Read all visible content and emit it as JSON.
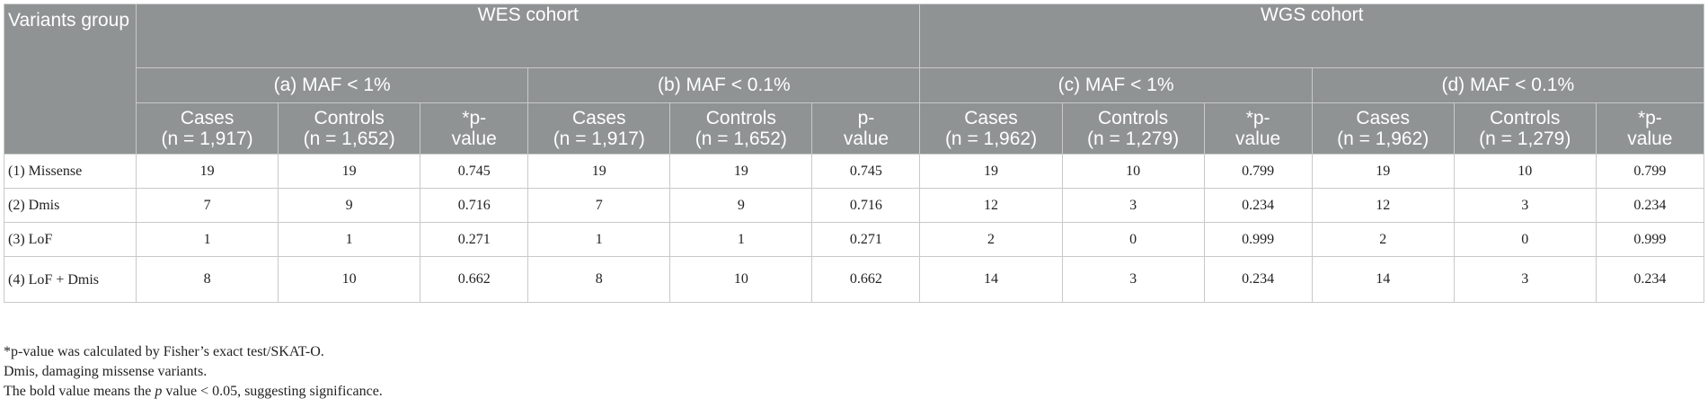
{
  "header": {
    "variants_group": "Variants group",
    "cohorts": [
      "WES cohort",
      "WGS cohort"
    ],
    "subgroups": [
      "(a) MAF < 1%",
      "(b) MAF < 0.1%",
      "(c) MAF < 1%",
      "(d) MAF < 0.1%"
    ],
    "columns": [
      {
        "l1": "Cases",
        "l2": "(n = 1,917)"
      },
      {
        "l1": "Controls",
        "l2": "(n = 1,652)"
      },
      {
        "l1": "*p-",
        "l2": "value"
      },
      {
        "l1": "Cases",
        "l2": "(n = 1,917)"
      },
      {
        "l1": "Controls",
        "l2": "(n = 1,652)"
      },
      {
        "l1": "p-",
        "l2": "value"
      },
      {
        "l1": "Cases",
        "l2": "(n = 1,962)"
      },
      {
        "l1": "Controls",
        "l2": "(n = 1,279)"
      },
      {
        "l1": "*p-",
        "l2": "value"
      },
      {
        "l1": "Cases",
        "l2": "(n = 1,962)"
      },
      {
        "l1": "Controls",
        "l2": "(n = 1,279)"
      },
      {
        "l1": "*p-",
        "l2": "value"
      }
    ]
  },
  "rows": [
    {
      "label": "(1) Missense",
      "cells": [
        "19",
        "19",
        "0.745",
        "19",
        "19",
        "0.745",
        "19",
        "10",
        "0.799",
        "19",
        "10",
        "0.799"
      ]
    },
    {
      "label": "(2) Dmis",
      "cells": [
        "7",
        "9",
        "0.716",
        "7",
        "9",
        "0.716",
        "12",
        "3",
        "0.234",
        "12",
        "3",
        "0.234"
      ]
    },
    {
      "label": "(3) LoF",
      "cells": [
        "1",
        "1",
        "0.271",
        "1",
        "1",
        "0.271",
        "2",
        "0",
        "0.999",
        "2",
        "0",
        "0.999"
      ]
    },
    {
      "label": "(4) LoF + Dmis",
      "cells": [
        "8",
        "10",
        "0.662",
        "8",
        "10",
        "0.662",
        "14",
        "3",
        "0.234",
        "14",
        "3",
        "0.234"
      ]
    }
  ],
  "footnotes": {
    "note1": "*p-value was calculated by Fisher’s exact test/SKAT-O.",
    "note2": "Dmis, damaging missense variants.",
    "note3_a": "The bold value means the ",
    "note3_p": "p",
    "note3_b": " value < 0.05, suggesting significance."
  }
}
